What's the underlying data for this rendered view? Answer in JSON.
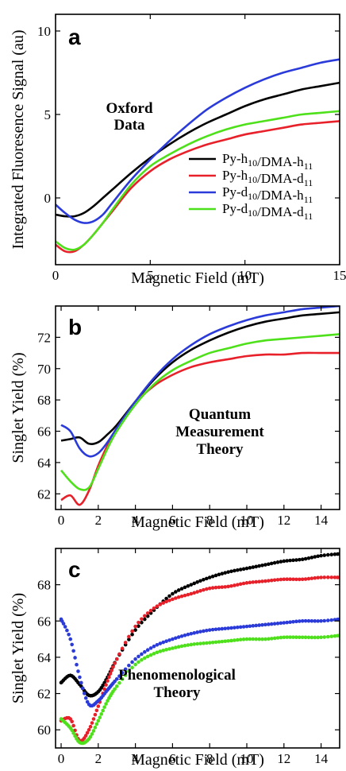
{
  "chart_data": [
    {
      "type": "line",
      "panel_letter": "a",
      "xlabel": "Magnetic Field (mT)",
      "ylabel": "Integrated Fluoresence Signal  (au)",
      "xlim": [
        0,
        15
      ],
      "ylim": [
        -4,
        11
      ],
      "xticks": [
        0,
        5,
        10,
        15
      ],
      "yticks": [
        0,
        5,
        10
      ],
      "xtick_labels": [
        "0",
        "5",
        "10",
        "15"
      ],
      "ytick_labels": [
        "0",
        "5",
        "10"
      ],
      "annotation": [
        "Oxford",
        "Data"
      ],
      "legend_position": "right",
      "series": [
        {
          "name": "Py-h10/DMA-h11",
          "label_parts": [
            [
              "Py-h",
              ""
            ],
            [
              "10",
              "sub"
            ],
            [
              "/DMA-h",
              ""
            ],
            [
              "11",
              "sub"
            ]
          ],
          "color": "#000000",
          "x": [
            0,
            0.5,
            1,
            1.5,
            2,
            2.5,
            3,
            4,
            5,
            6,
            7,
            8,
            9,
            10,
            11,
            12,
            13,
            14,
            15
          ],
          "y": [
            -1.0,
            -1.1,
            -1.1,
            -0.9,
            -0.5,
            0.0,
            0.5,
            1.5,
            2.4,
            3.2,
            3.9,
            4.5,
            5.0,
            5.5,
            5.9,
            6.2,
            6.5,
            6.7,
            6.9
          ]
        },
        {
          "name": "Py-h10/DMA-d11",
          "label_parts": [
            [
              "Py-h",
              ""
            ],
            [
              "10",
              "sub"
            ],
            [
              "/DMA-d",
              ""
            ],
            [
              "11",
              "sub"
            ]
          ],
          "color": "#e8202a",
          "x": [
            0,
            0.5,
            1,
            1.5,
            2,
            2.5,
            3,
            4,
            5,
            6,
            7,
            8,
            9,
            10,
            11,
            12,
            13,
            14,
            15
          ],
          "y": [
            -2.8,
            -3.2,
            -3.2,
            -2.8,
            -2.2,
            -1.5,
            -0.8,
            0.6,
            1.6,
            2.3,
            2.8,
            3.2,
            3.5,
            3.8,
            4.0,
            4.2,
            4.4,
            4.5,
            4.6
          ]
        },
        {
          "name": "Py-d10/DMA-h11",
          "label_parts": [
            [
              "Py-d",
              ""
            ],
            [
              "10",
              "sub"
            ],
            [
              "/DMA-h",
              ""
            ],
            [
              "11",
              "sub"
            ]
          ],
          "color": "#2b3bd9",
          "x": [
            0,
            0.5,
            1,
            1.5,
            2,
            2.5,
            3,
            4,
            5,
            6,
            7,
            8,
            9,
            10,
            11,
            12,
            13,
            14,
            15
          ],
          "y": [
            -0.4,
            -0.9,
            -1.3,
            -1.5,
            -1.4,
            -1.0,
            -0.3,
            1.1,
            2.3,
            3.4,
            4.4,
            5.3,
            6.0,
            6.6,
            7.1,
            7.5,
            7.8,
            8.1,
            8.3
          ]
        },
        {
          "name": "Py-d10/DMA-d11",
          "label_parts": [
            [
              "Py-d",
              ""
            ],
            [
              "10",
              "sub"
            ],
            [
              "/DMA-d",
              ""
            ],
            [
              "11",
              "sub"
            ]
          ],
          "color": "#4ee01a",
          "x": [
            0,
            0.5,
            1,
            1.5,
            2,
            2.5,
            3,
            4,
            5,
            6,
            7,
            8,
            9,
            10,
            11,
            12,
            13,
            14,
            15
          ],
          "y": [
            -2.6,
            -3.0,
            -3.1,
            -2.8,
            -2.2,
            -1.5,
            -0.7,
            0.8,
            1.9,
            2.6,
            3.2,
            3.7,
            4.1,
            4.4,
            4.6,
            4.8,
            5.0,
            5.1,
            5.2
          ]
        }
      ]
    },
    {
      "type": "line",
      "panel_letter": "b",
      "xlabel": "Magnetic Field (mT)",
      "ylabel": "Singlet Yield (%)",
      "xlim": [
        -0.3,
        15
      ],
      "ylim": [
        61,
        74
      ],
      "xticks": [
        0,
        2,
        4,
        6,
        8,
        10,
        12,
        14
      ],
      "yticks": [
        62,
        64,
        66,
        68,
        70,
        72
      ],
      "xtick_labels": [
        "0",
        "2",
        "4",
        "6",
        "8",
        "10",
        "12",
        "14"
      ],
      "ytick_labels": [
        "62",
        "64",
        "66",
        "68",
        "70",
        "72"
      ],
      "annotation": [
        "Quantum",
        "Measurement",
        "Theory"
      ],
      "series": [
        {
          "color": "#000000",
          "x": [
            0,
            0.5,
            1,
            1.5,
            2,
            2.5,
            3,
            4,
            5,
            6,
            7,
            8,
            9,
            10,
            11,
            12,
            13,
            14,
            15
          ],
          "y": [
            65.4,
            65.5,
            65.6,
            65.2,
            65.3,
            65.8,
            66.4,
            67.9,
            69.3,
            70.4,
            71.2,
            71.8,
            72.3,
            72.7,
            73.0,
            73.2,
            73.4,
            73.5,
            73.6
          ]
        },
        {
          "color": "#e8202a",
          "x": [
            0,
            0.5,
            1,
            1.5,
            2,
            2.5,
            3,
            4,
            5,
            6,
            7,
            8,
            9,
            10,
            11,
            12,
            13,
            14,
            15
          ],
          "y": [
            61.6,
            61.9,
            61.3,
            62.2,
            63.8,
            65.1,
            66.2,
            67.8,
            68.9,
            69.6,
            70.1,
            70.4,
            70.6,
            70.8,
            70.9,
            70.9,
            71.0,
            71.0,
            71.0
          ]
        },
        {
          "color": "#2b3bd9",
          "x": [
            0,
            0.5,
            1,
            1.5,
            2,
            2.5,
            3,
            4,
            5,
            6,
            7,
            8,
            9,
            10,
            11,
            12,
            13,
            14,
            15
          ],
          "y": [
            66.4,
            66.0,
            64.9,
            64.4,
            64.6,
            65.3,
            66.2,
            67.9,
            69.4,
            70.6,
            71.5,
            72.2,
            72.7,
            73.1,
            73.4,
            73.6,
            73.8,
            73.9,
            74.0
          ]
        },
        {
          "color": "#4ee01a",
          "x": [
            0,
            0.5,
            1,
            1.5,
            2,
            2.5,
            3,
            4,
            5,
            6,
            7,
            8,
            9,
            10,
            11,
            12,
            13,
            14,
            15
          ],
          "y": [
            63.5,
            62.8,
            62.3,
            62.4,
            63.6,
            64.9,
            66.0,
            67.7,
            69.0,
            69.9,
            70.5,
            71.0,
            71.3,
            71.6,
            71.8,
            71.9,
            72.0,
            72.1,
            72.2
          ]
        }
      ]
    },
    {
      "type": "scatter",
      "panel_letter": "c",
      "xlabel": "Magnetic Field (mT)",
      "ylabel": "Singlet Yield (%)",
      "xlim": [
        -0.3,
        15
      ],
      "ylim": [
        59,
        70
      ],
      "xticks": [
        0,
        2,
        4,
        6,
        8,
        10,
        12,
        14
      ],
      "yticks": [
        60,
        62,
        64,
        66,
        68
      ],
      "xtick_labels": [
        "0",
        "2",
        "4",
        "6",
        "8",
        "10",
        "12",
        "14"
      ],
      "ytick_labels": [
        "60",
        "62",
        "64",
        "66",
        "68"
      ],
      "annotation": [
        "Phenomenological",
        "Theory"
      ],
      "series": [
        {
          "color": "#000000",
          "x": [
            0,
            0.5,
            1,
            1.5,
            2,
            2.5,
            3,
            4,
            5,
            6,
            7,
            8,
            9,
            10,
            11,
            12,
            13,
            14,
            15
          ],
          "y": [
            62.6,
            63.0,
            62.5,
            61.9,
            62.1,
            62.9,
            63.9,
            65.5,
            66.6,
            67.5,
            68.0,
            68.4,
            68.7,
            68.9,
            69.1,
            69.3,
            69.4,
            69.6,
            69.7
          ]
        },
        {
          "color": "#e8202a",
          "x": [
            0,
            0.5,
            1,
            1.5,
            2,
            2.5,
            3,
            4,
            5,
            6,
            7,
            8,
            9,
            10,
            11,
            12,
            13,
            14,
            15
          ],
          "y": [
            60.5,
            60.6,
            59.4,
            60.0,
            61.3,
            62.7,
            63.9,
            65.7,
            66.7,
            67.2,
            67.5,
            67.8,
            67.9,
            68.1,
            68.2,
            68.3,
            68.3,
            68.4,
            68.4
          ]
        },
        {
          "color": "#2b3bd9",
          "x": [
            0,
            0.5,
            1,
            1.5,
            2,
            2.5,
            3,
            4,
            5,
            6,
            7,
            8,
            9,
            10,
            11,
            12,
            13,
            14,
            15
          ],
          "y": [
            66.1,
            65.0,
            62.9,
            61.4,
            61.6,
            62.2,
            62.8,
            63.9,
            64.6,
            65.0,
            65.3,
            65.5,
            65.6,
            65.7,
            65.8,
            65.9,
            66.0,
            66.0,
            66.1
          ]
        },
        {
          "color": "#4ee01a",
          "x": [
            0,
            0.5,
            1,
            1.5,
            2,
            2.5,
            3,
            4,
            5,
            6,
            7,
            8,
            9,
            10,
            11,
            12,
            13,
            14,
            15
          ],
          "y": [
            60.6,
            60.1,
            59.3,
            59.5,
            60.5,
            61.6,
            62.4,
            63.6,
            64.2,
            64.5,
            64.7,
            64.8,
            64.9,
            65.0,
            65.0,
            65.1,
            65.1,
            65.1,
            65.2
          ]
        }
      ]
    }
  ]
}
